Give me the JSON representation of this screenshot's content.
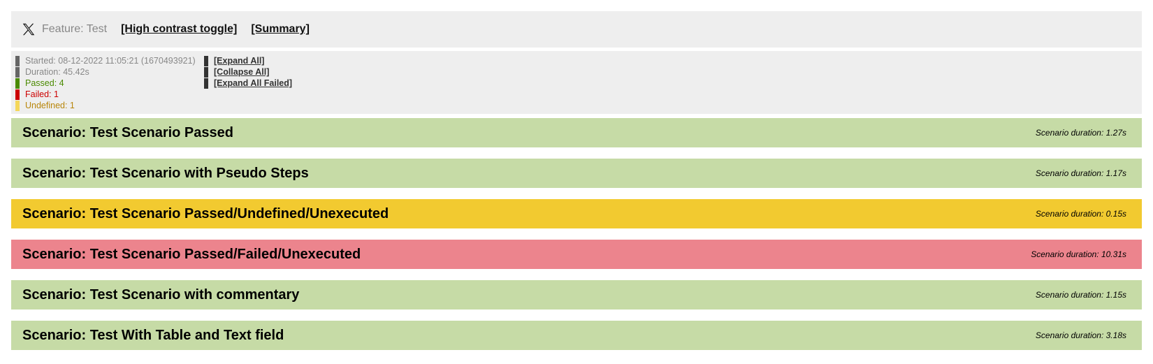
{
  "header": {
    "logo_icon": "x-logo-icon",
    "feature_title": "Feature: Test",
    "high_contrast_label": "[High contrast toggle]",
    "summary_label": "[Summary]"
  },
  "stats": {
    "started": "Started: 08-12-2022 11:05:21 (1670493921)",
    "duration": "Duration: 45.42s",
    "passed": "Passed: 4",
    "failed": "Failed: 1",
    "undefined": "Undefined: 1"
  },
  "controls": {
    "expand_all": "[Expand All]",
    "collapse_all": "[Collapse All]",
    "expand_all_failed": "[Expand All Failed]"
  },
  "colors": {
    "passed": "#c6dba6",
    "undefined": "#f2ca30",
    "failed": "#ec848d",
    "passed_text": "#4a8a00",
    "failed_text": "#cc0000",
    "undefined_text": "#b8860b",
    "neutral_bar": "#666666"
  },
  "scenarios": [
    {
      "title": "Scenario: Test Scenario Passed",
      "duration": "Scenario duration: 1.27s",
      "status": "passed"
    },
    {
      "title": "Scenario: Test Scenario with Pseudo Steps",
      "duration": "Scenario duration: 1.17s",
      "status": "passed"
    },
    {
      "title": "Scenario: Test Scenario Passed/Undefined/Unexecuted",
      "duration": "Scenario duration: 0.15s",
      "status": "undefined"
    },
    {
      "title": "Scenario: Test Scenario Passed/Failed/Unexecuted",
      "duration": "Scenario duration: 10.31s",
      "status": "failed"
    },
    {
      "title": "Scenario: Test Scenario with commentary",
      "duration": "Scenario duration: 1.15s",
      "status": "passed"
    },
    {
      "title": "Scenario: Test With Table and Text field",
      "duration": "Scenario duration: 3.18s",
      "status": "passed"
    }
  ]
}
